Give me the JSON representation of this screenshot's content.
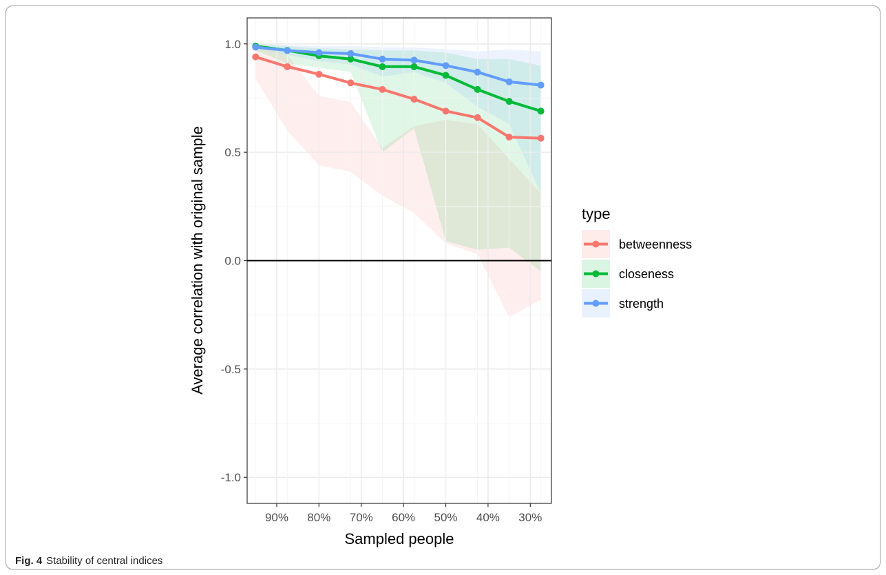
{
  "caption": {
    "label": "Fig. 4",
    "text": "Stability of central indices"
  },
  "colors": {
    "betweenness": "#F8766D",
    "closeness": "#00BA38",
    "strength": "#619CFF"
  },
  "chart_data": {
    "type": "line",
    "title": "",
    "xlabel": "Sampled people",
    "ylabel": "Average correlation with original sample",
    "x": [
      95,
      87.5,
      80,
      72.5,
      65,
      57.5,
      50,
      42.5,
      35,
      27.5
    ],
    "x_ticks": [
      90,
      80,
      70,
      60,
      50,
      40,
      30
    ],
    "x_tick_labels": [
      "90%",
      "80%",
      "70%",
      "60%",
      "50%",
      "40%",
      "30%"
    ],
    "xlim": [
      97,
      25
    ],
    "ylim": [
      -1.12,
      1.12
    ],
    "y_ticks": [
      -1.0,
      -0.5,
      0.0,
      0.5,
      1.0
    ],
    "y_tick_labels": [
      "-1.0",
      "-0.5",
      "0.0",
      "0.5",
      "1.0"
    ],
    "grid": true,
    "reference_line_y": 0,
    "legend": {
      "title": "type",
      "position": "right"
    },
    "series": [
      {
        "name": "betweenness",
        "values": [
          0.94,
          0.895,
          0.86,
          0.82,
          0.79,
          0.745,
          0.69,
          0.66,
          0.57,
          0.565
        ],
        "lower": [
          0.84,
          0.6,
          0.44,
          0.41,
          0.3,
          0.22,
          0.08,
          0.03,
          -0.26,
          -0.18
        ],
        "upper": [
          0.99,
          0.95,
          0.76,
          0.73,
          0.52,
          0.62,
          0.65,
          0.63,
          0.47,
          0.31
        ]
      },
      {
        "name": "closeness",
        "values": [
          0.99,
          0.97,
          0.945,
          0.93,
          0.895,
          0.895,
          0.855,
          0.79,
          0.735,
          0.69
        ],
        "lower": [
          0.97,
          0.91,
          0.89,
          0.87,
          0.5,
          0.61,
          0.09,
          0.05,
          0.06,
          -0.05
        ],
        "upper": [
          1.0,
          0.99,
          0.98,
          0.975,
          0.97,
          0.97,
          0.96,
          0.93,
          0.93,
          0.9
        ]
      },
      {
        "name": "strength",
        "values": [
          0.985,
          0.97,
          0.96,
          0.955,
          0.93,
          0.925,
          0.9,
          0.87,
          0.825,
          0.81
        ],
        "lower": [
          0.98,
          0.95,
          0.92,
          0.905,
          0.85,
          0.87,
          0.82,
          0.71,
          0.63,
          0.31
        ],
        "upper": [
          1.0,
          0.995,
          0.99,
          0.99,
          0.985,
          0.985,
          0.975,
          0.965,
          0.975,
          0.965
        ]
      }
    ]
  }
}
